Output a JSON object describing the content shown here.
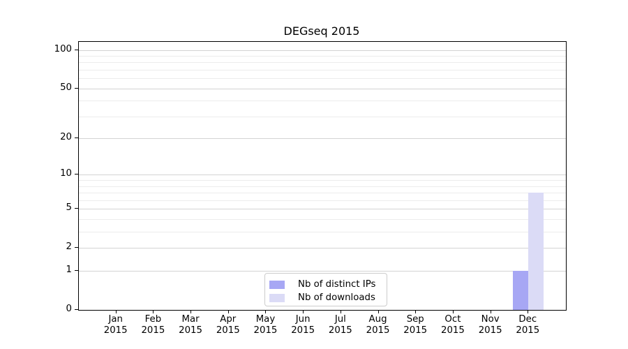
{
  "figure": {
    "title": "DEGseq 2015"
  },
  "chart_data": {
    "type": "bar",
    "title": "DEGseq 2015",
    "x_year": "2015",
    "months": [
      "Jan",
      "Feb",
      "Mar",
      "Apr",
      "May",
      "Jun",
      "Jul",
      "Aug",
      "Sep",
      "Oct",
      "Nov",
      "Dec"
    ],
    "categories": [
      "Jan 2015",
      "Feb 2015",
      "Mar 2015",
      "Apr 2015",
      "May 2015",
      "Jun 2015",
      "Jul 2015",
      "Aug 2015",
      "Sep 2015",
      "Oct 2015",
      "Nov 2015",
      "Dec 2015"
    ],
    "series": [
      {
        "name": "Nb of distinct IPs",
        "color": "#a7a7f4",
        "values": [
          0,
          0,
          0,
          0,
          0,
          0,
          0,
          0,
          0,
          0,
          0,
          1
        ]
      },
      {
        "name": "Nb of downloads",
        "color": "#dbdbf6",
        "values": [
          0,
          0,
          0,
          0,
          0,
          0,
          0,
          0,
          0,
          0,
          0,
          7
        ]
      }
    ],
    "y_axis": {
      "scale": "log1p",
      "tick_values": [
        0,
        1,
        2,
        5,
        10,
        20,
        50,
        100
      ],
      "minor_gridline_values": [
        3,
        4,
        6,
        7,
        8,
        9,
        30,
        40,
        60,
        70,
        80,
        90
      ],
      "ylim": [
        0,
        116
      ]
    },
    "xlabel": "",
    "ylabel": "",
    "grid": "on",
    "legend": {
      "position": "lower-center",
      "labels": [
        "Nb of distinct IPs",
        "Nb of downloads"
      ]
    },
    "colors": {
      "grid_major": "#d3d3d3",
      "grid_minor": "#ececec",
      "axis": "#000000",
      "legend_border": "#cccccc",
      "text": "#000000"
    }
  }
}
